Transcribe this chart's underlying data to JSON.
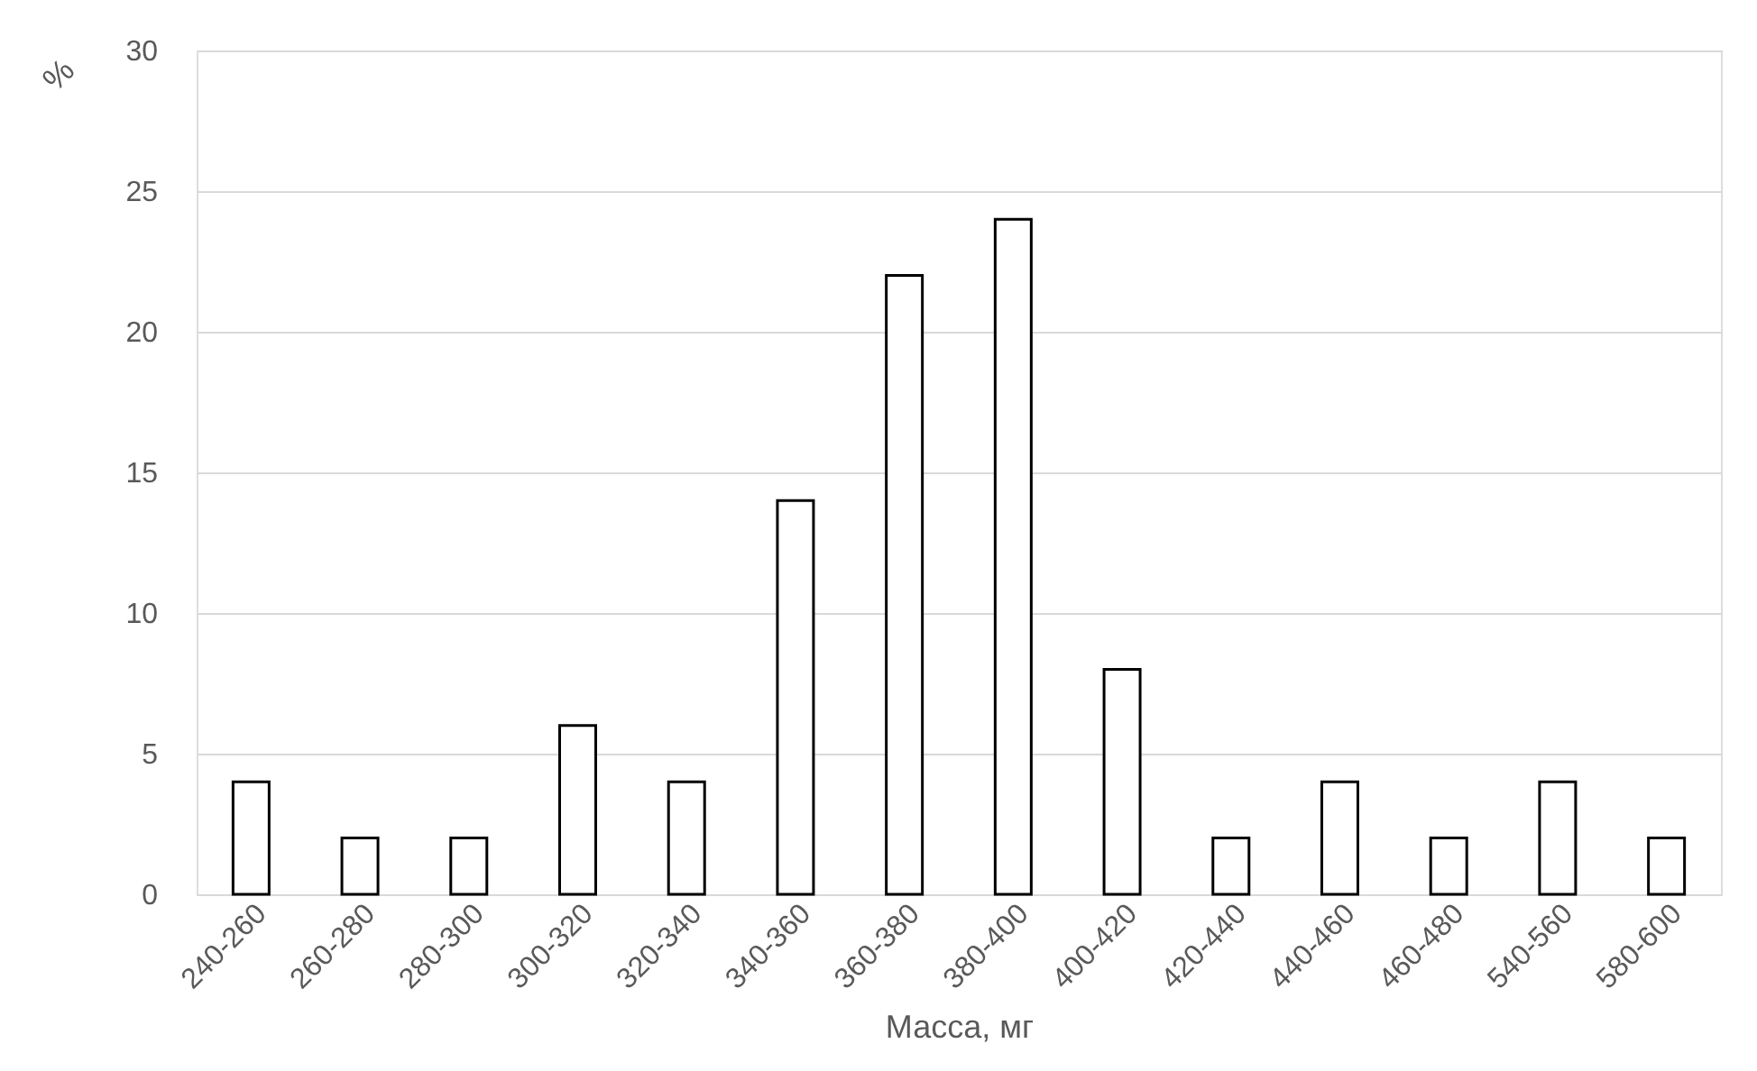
{
  "chart_data": {
    "type": "bar",
    "categories": [
      "240-260",
      "260-280",
      "280-300",
      "300-320",
      "320-340",
      "340-360",
      "360-380",
      "380-400",
      "400-420",
      "420-440",
      "440-460",
      "460-480",
      "540-560",
      "580-600"
    ],
    "values": [
      4,
      2,
      2,
      6,
      4,
      14,
      22,
      24,
      8,
      2,
      4,
      2,
      4,
      2
    ],
    "color": "#ffffff",
    "xlabel": "Масса, мг",
    "ylabel": "%",
    "ylim": [
      0,
      30
    ],
    "yticks": [
      0,
      5,
      10,
      15,
      20,
      25,
      30
    ],
    "grid": "y"
  }
}
